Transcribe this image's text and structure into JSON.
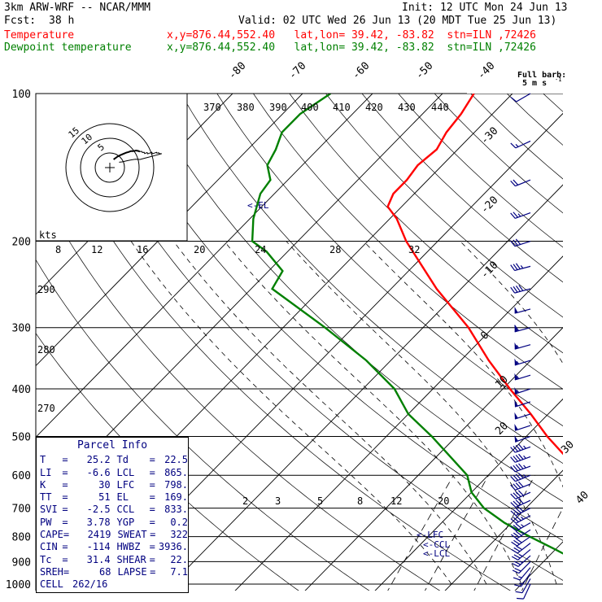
{
  "header": {
    "model": "3km ARW-WRF -- NCAR/MMM",
    "init": "Init: 12 UTC Mon 24 Jun 13",
    "fcst_label": "Fcst:",
    "fcst_value": "38 h",
    "valid": "Valid: 02 UTC Wed 26 Jun 13 (20 MDT Tue 25 Jun 13)",
    "temp_label": "Temperature",
    "temp_loc": "x,y=876.44,552.40   lat,lon= 39.42, -83.82  stn=ILN ,72426",
    "dew_label": "Dewpoint temperature",
    "dew_loc": "x,y=876.44,552.40   lat,lon= 39.42, -83.82  stn=ILN ,72426"
  },
  "colors": {
    "temperature": "#ff0000",
    "dewpoint": "#008000",
    "barbs": "#000080",
    "parcel_text": "#000080"
  },
  "parcel": {
    "title": "Parcel Info",
    "rows": [
      [
        "T",
        "25.2",
        "Td",
        "22.5"
      ],
      [
        "LI",
        "-6.6",
        "LCL",
        "865."
      ],
      [
        "K",
        "30",
        "LFC",
        "798."
      ],
      [
        "TT",
        "51",
        "EL",
        "169."
      ],
      [
        "SVI",
        "-2.5",
        "CCL",
        "833."
      ],
      [
        "PW",
        "3.78",
        "YGP",
        "0.2"
      ],
      [
        "CAPE",
        "2419",
        "SWEAT",
        "322"
      ],
      [
        "CIN",
        "-114",
        "HWBZ",
        "3936."
      ],
      [
        "Tc",
        "31.4",
        "SHEAR",
        "22."
      ],
      [
        "SREH",
        "68",
        "LAPSE",
        "7.1"
      ]
    ],
    "cell_label": "CELL",
    "cell_value": "262/16"
  },
  "chart_data": {
    "type": "line",
    "chart_kind": "skew-T log-P sounding",
    "y_axis": {
      "label": "pressure (hPa)",
      "scale": "log",
      "range": [
        1000,
        100
      ],
      "ticks": [
        100,
        200,
        300,
        400,
        500,
        600,
        700,
        800,
        900,
        1000
      ]
    },
    "isotherm_labels": [
      "-80",
      "-70",
      "-60",
      "-50",
      "-40",
      "-30",
      "-20",
      "-10",
      "0",
      "10",
      "20",
      "30",
      "40"
    ],
    "theta_labels": [
      "370",
      "380",
      "390",
      "400",
      "410",
      "420",
      "430",
      "440",
      "290",
      "280",
      "270"
    ],
    "wind_speed_labels": {
      "unit": "kts",
      "ticks": [
        "8",
        "12",
        "16",
        "20",
        "24",
        "28",
        "32"
      ]
    },
    "mixing_ratio_labels": [
      "2",
      "3",
      "5",
      "8",
      "12",
      "20"
    ],
    "level_markers": [
      "EL",
      "LFC",
      "CCL",
      "LCL"
    ],
    "hodograph_ring_labels": [
      "5",
      "10",
      "15"
    ],
    "barb_legend": [
      "Full barb:",
      "5 m s"
    ],
    "series": [
      {
        "name": "Temperature",
        "points": [
          [
            1000,
            24.5
          ],
          [
            980,
            25.5
          ],
          [
            950,
            23.5
          ],
          [
            925,
            22.0
          ],
          [
            900,
            20.0
          ],
          [
            850,
            17.5
          ],
          [
            800,
            15.0
          ],
          [
            750,
            12.5
          ],
          [
            700,
            10.0
          ],
          [
            650,
            7.0
          ],
          [
            600,
            3.0
          ],
          [
            550,
            -1.5
          ],
          [
            500,
            -7.0
          ],
          [
            450,
            -12.5
          ],
          [
            400,
            -19.0
          ],
          [
            350,
            -26.0
          ],
          [
            300,
            -33.5
          ],
          [
            250,
            -43.5
          ],
          [
            200,
            -54.5
          ],
          [
            180,
            -59.0
          ],
          [
            170,
            -62.0
          ],
          [
            160,
            -63.0
          ],
          [
            150,
            -63.0
          ],
          [
            140,
            -63.5
          ],
          [
            130,
            -63.0
          ],
          [
            120,
            -64.0
          ],
          [
            110,
            -64.5
          ],
          [
            100,
            -65.5
          ]
        ]
      },
      {
        "name": "Dewpoint temperature",
        "points": [
          [
            1000,
            21.5
          ],
          [
            980,
            21.8
          ],
          [
            950,
            21.0
          ],
          [
            925,
            19.5
          ],
          [
            900,
            15.0
          ],
          [
            850,
            10.0
          ],
          [
            800,
            4.5
          ],
          [
            750,
            -1.0
          ],
          [
            700,
            -6.0
          ],
          [
            650,
            -10.0
          ],
          [
            600,
            -13.0
          ],
          [
            550,
            -18.0
          ],
          [
            500,
            -23.5
          ],
          [
            450,
            -30.0
          ],
          [
            400,
            -35.5
          ],
          [
            350,
            -43.5
          ],
          [
            300,
            -54.0
          ],
          [
            250,
            -67.0
          ],
          [
            230,
            -68.0
          ],
          [
            210,
            -73.0
          ],
          [
            200,
            -76.5
          ],
          [
            180,
            -79.5
          ],
          [
            160,
            -82.0
          ],
          [
            150,
            -82.5
          ],
          [
            140,
            -85.0
          ],
          [
            130,
            -86.0
          ],
          [
            120,
            -87.5
          ],
          [
            110,
            -87.5
          ],
          [
            100,
            -86.0
          ]
        ]
      }
    ],
    "wind_barbs": [
      [
        1000,
        205,
        10
      ],
      [
        975,
        210,
        12
      ],
      [
        950,
        215,
        15
      ],
      [
        925,
        220,
        18
      ],
      [
        900,
        225,
        22
      ],
      [
        875,
        228,
        25
      ],
      [
        850,
        230,
        27
      ],
      [
        825,
        232,
        30
      ],
      [
        800,
        235,
        32
      ],
      [
        775,
        237,
        35
      ],
      [
        750,
        240,
        37
      ],
      [
        725,
        242,
        38
      ],
      [
        700,
        243,
        40
      ],
      [
        675,
        245,
        40
      ],
      [
        650,
        246,
        42
      ],
      [
        625,
        248,
        42
      ],
      [
        600,
        248,
        45
      ],
      [
        575,
        250,
        45
      ],
      [
        550,
        250,
        47
      ],
      [
        525,
        250,
        47
      ],
      [
        500,
        250,
        50
      ],
      [
        475,
        252,
        50
      ],
      [
        450,
        252,
        52
      ],
      [
        425,
        252,
        52
      ],
      [
        400,
        252,
        55
      ],
      [
        375,
        253,
        55
      ],
      [
        350,
        253,
        57
      ],
      [
        325,
        254,
        57
      ],
      [
        300,
        255,
        60
      ],
      [
        275,
        255,
        50
      ],
      [
        250,
        255,
        42
      ],
      [
        225,
        255,
        35
      ],
      [
        200,
        252,
        30
      ],
      [
        175,
        250,
        25
      ],
      [
        150,
        248,
        20
      ],
      [
        125,
        245,
        15
      ],
      [
        100,
        240,
        12
      ]
    ]
  }
}
